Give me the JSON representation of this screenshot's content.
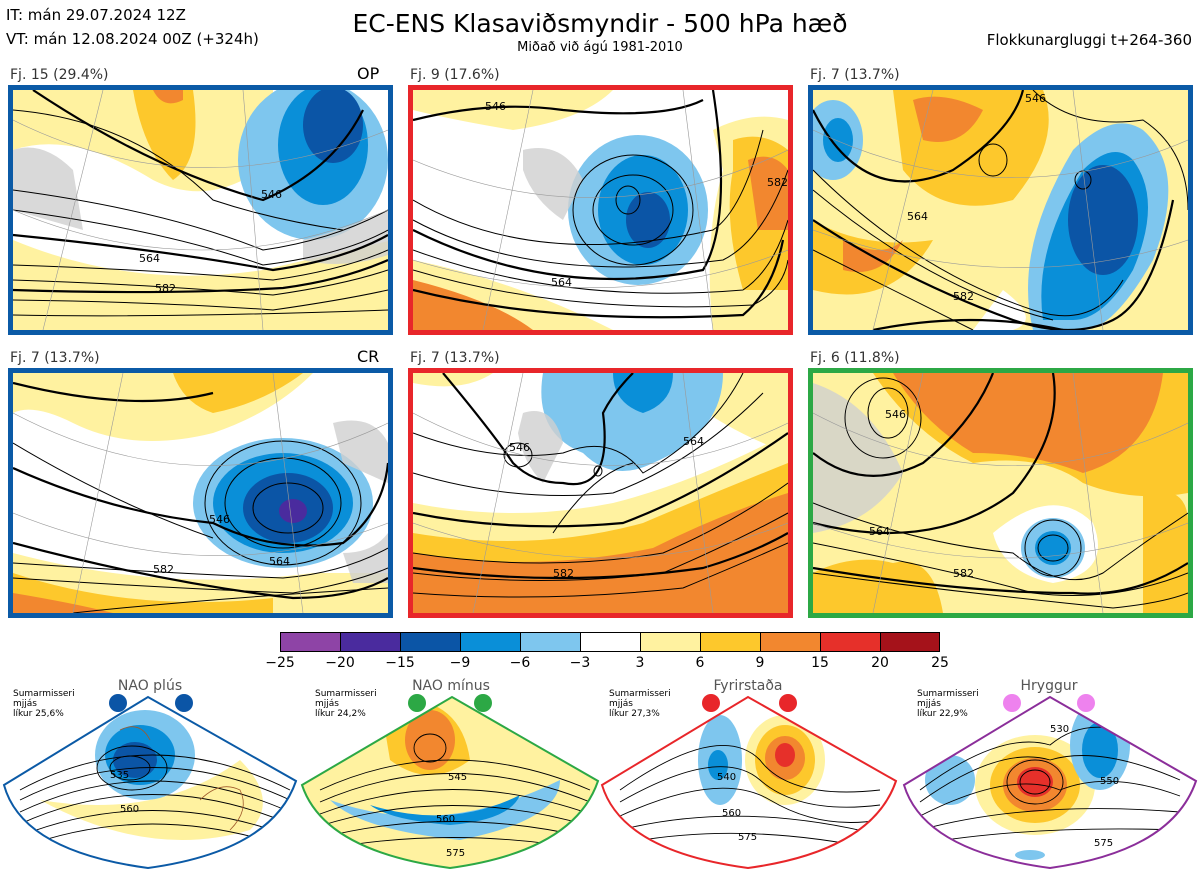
{
  "header": {
    "it_line": "IT: mán 29.07.2024 12Z",
    "vt_line": "VT: mán 12.08.2024 00Z  (+324h)",
    "title": "EC-ENS Klasaviðsmyndir - 500 hPa hæð",
    "subtitle": "Miðað við ágú 1981-2010",
    "window": "Flokkunargluggi t+264-360"
  },
  "colors": {
    "blue_frame": "#0b5aa6",
    "red_frame": "#e8262a",
    "green_frame": "#2ca845",
    "purple_frame": "#8b2e9a"
  },
  "panels": [
    {
      "label": "Fj. 15 (29.4%)",
      "tag": "OP",
      "frame": "blue",
      "contours": [
        "546",
        "564",
        "582"
      ]
    },
    {
      "label": "Fj. 9 (17.6%)",
      "tag": "",
      "frame": "red",
      "contours": [
        "546",
        "564",
        "582"
      ]
    },
    {
      "label": "Fj. 7 (13.7%)",
      "tag": "",
      "frame": "blue",
      "contours": [
        "546",
        "564",
        "582"
      ]
    },
    {
      "label": "Fj. 7 (13.7%)",
      "tag": "CR",
      "frame": "blue",
      "contours": [
        "546",
        "564",
        "582"
      ]
    },
    {
      "label": "Fj. 7 (13.7%)",
      "tag": "",
      "frame": "red",
      "contours": [
        "546",
        "564",
        "582"
      ]
    },
    {
      "label": "Fj. 6 (11.8%)",
      "tag": "",
      "frame": "green",
      "contours": [
        "546",
        "564",
        "582"
      ]
    }
  ],
  "colorbar": {
    "ticks": [
      "−25",
      "−20",
      "−15",
      "−9",
      "−6",
      "−3",
      "3",
      "6",
      "9",
      "15",
      "20",
      "25"
    ],
    "colors": [
      "#8e44a6",
      "#4a2b9e",
      "#0b55a6",
      "#0a8fd8",
      "#7ec6ee",
      "#ffffff",
      "#fff2a0",
      "#fdc82c",
      "#f2872f",
      "#e6302a",
      "#a5121a"
    ]
  },
  "regimes": [
    {
      "name": "NAO plús",
      "note": [
        "Sumarmisseri",
        "mjjás",
        "líkur 25,6%"
      ],
      "frame": "blue",
      "dot_color": "#0b55a6",
      "contours": [
        "535",
        "560"
      ]
    },
    {
      "name": "NAO mínus",
      "note": [
        "Sumarmisseri",
        "mjjás",
        "líkur 24,2%"
      ],
      "frame": "green",
      "dot_color": "#2ca845",
      "contours": [
        "545",
        "560",
        "575"
      ]
    },
    {
      "name": "Fyrirstaða",
      "note": [
        "Sumarmisseri",
        "mjjás",
        "líkur 27,3%"
      ],
      "frame": "red",
      "dot_color": "#e8262a",
      "contours": [
        "540",
        "560",
        "575"
      ]
    },
    {
      "name": "Hryggur",
      "note": [
        "Sumarmisseri",
        "mjjás",
        "líkur 22,9%"
      ],
      "frame": "purple",
      "dot_color": "#ee82ee",
      "contours": [
        "530",
        "550",
        "575"
      ]
    }
  ]
}
